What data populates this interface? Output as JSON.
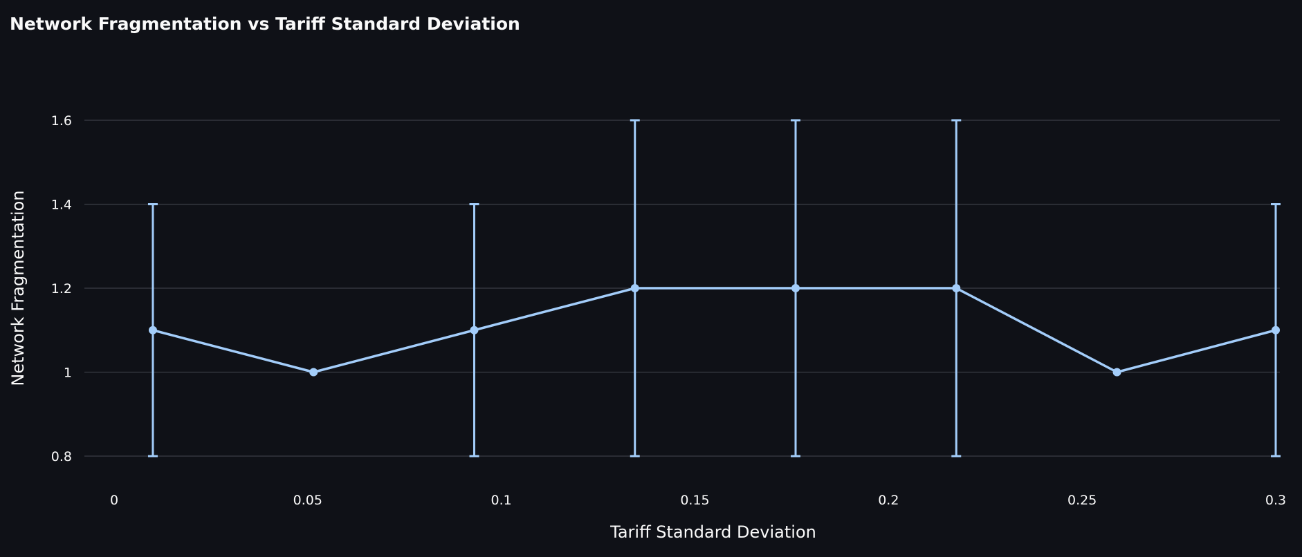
{
  "chart_data": {
    "type": "line",
    "title": "Network Fragmentation vs Tariff Standard Deviation",
    "xlabel": "Tariff Standard Deviation",
    "ylabel": "Network Fragmentation",
    "xlim": [
      0,
      0.3
    ],
    "ylim": [
      0.8,
      1.6
    ],
    "x_ticks": [
      "0",
      "0.05",
      "0.1",
      "0.15",
      "0.2",
      "0.25",
      "0.3"
    ],
    "y_ticks": [
      "0.8",
      "1",
      "1.2",
      "1.4",
      "1.6"
    ],
    "grid": true,
    "legend": "none",
    "series": [
      {
        "x": [
          0.01,
          0.0515,
          0.093,
          0.1345,
          0.176,
          0.2175,
          0.259,
          0.3
        ],
        "y": [
          1.1,
          1.0,
          1.1,
          1.2,
          1.2,
          1.2,
          1.0,
          1.1
        ],
        "error_low": [
          0.8,
          1.0,
          0.8,
          0.8,
          0.8,
          0.8,
          1.0,
          0.8
        ],
        "error_high": [
          1.4,
          1.0,
          1.4,
          1.6,
          1.6,
          1.6,
          1.0,
          1.4
        ],
        "color": "#a3cdfa"
      }
    ]
  }
}
